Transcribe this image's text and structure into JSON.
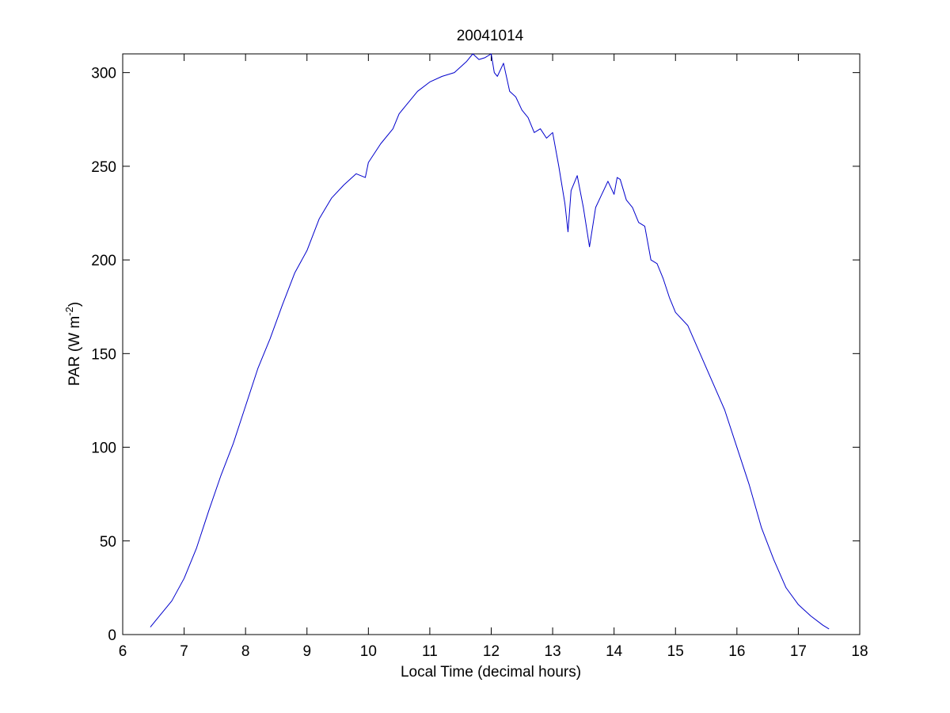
{
  "chart_data": {
    "type": "line",
    "title": "20041014",
    "xlabel": "Local Time (decimal hours)",
    "ylabel": {
      "main": "PAR (W m",
      "superscript": "-2",
      "close": ")"
    },
    "xlim": [
      6,
      18
    ],
    "ylim": [
      0,
      310
    ],
    "xticks": [
      6,
      7,
      8,
      9,
      10,
      11,
      12,
      13,
      14,
      15,
      16,
      17,
      18
    ],
    "yticks": [
      0,
      50,
      100,
      150,
      200,
      250,
      300
    ],
    "grid": false,
    "line_color": "#0000cc",
    "series": [
      {
        "x": [
          6.45,
          6.6,
          6.8,
          7.0,
          7.2,
          7.4,
          7.6,
          7.8,
          8.0,
          8.2,
          8.4,
          8.6,
          8.8,
          9.0,
          9.2,
          9.4,
          9.6,
          9.8,
          9.95,
          10.0,
          10.2,
          10.4,
          10.5,
          10.6,
          10.8,
          11.0,
          11.2,
          11.4,
          11.6,
          11.7,
          11.8,
          11.9,
          12.0,
          12.05,
          12.1,
          12.2,
          12.3,
          12.4,
          12.5,
          12.6,
          12.7,
          12.8,
          12.9,
          13.0,
          13.1,
          13.2,
          13.25,
          13.3,
          13.4,
          13.5,
          13.6,
          13.7,
          13.8,
          13.9,
          14.0,
          14.05,
          14.1,
          14.2,
          14.3,
          14.4,
          14.5,
          14.6,
          14.7,
          14.8,
          14.9,
          15.0,
          15.2,
          15.4,
          15.6,
          15.8,
          16.0,
          16.2,
          16.4,
          16.6,
          16.8,
          17.0,
          17.2,
          17.4,
          17.5
        ],
        "y": [
          4,
          10,
          18,
          30,
          46,
          66,
          85,
          102,
          122,
          142,
          158,
          176,
          193,
          205,
          222,
          233,
          240,
          246,
          244,
          252,
          262,
          270,
          278,
          282,
          290,
          295,
          298,
          300,
          306,
          310,
          307,
          308,
          312,
          300,
          298,
          305,
          290,
          287,
          280,
          276,
          268,
          270,
          265,
          268,
          250,
          230,
          215,
          237,
          245,
          228,
          207,
          228,
          235,
          242,
          235,
          244,
          243,
          232,
          228,
          220,
          218,
          200,
          198,
          190,
          180,
          172,
          165,
          150,
          135,
          120,
          100,
          80,
          57,
          40,
          25,
          16,
          10,
          5,
          3
        ]
      }
    ]
  }
}
